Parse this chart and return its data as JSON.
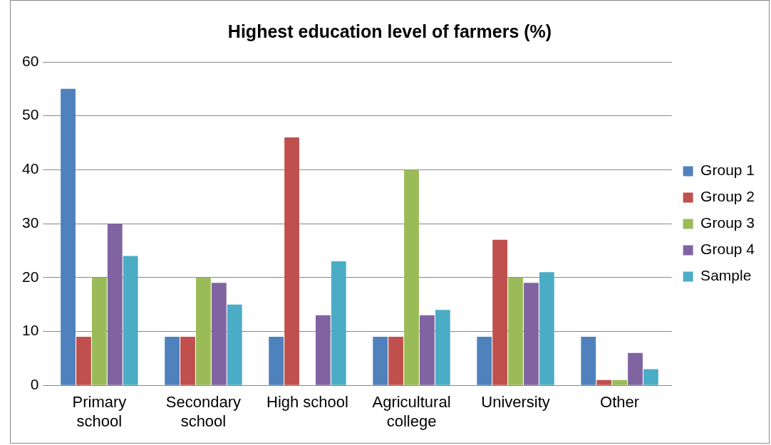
{
  "chart_data": {
    "type": "bar",
    "title": "Highest education level of farmers (%)",
    "categories": [
      "Primary school",
      "Secondary school",
      "High school",
      "Agricultural college",
      "University",
      "Other"
    ],
    "series": [
      {
        "name": "Group 1",
        "color": "#4f81bd",
        "values": [
          55,
          9,
          9,
          9,
          9,
          9
        ]
      },
      {
        "name": "Group 2",
        "color": "#c0504d",
        "values": [
          9,
          9,
          46,
          9,
          27,
          1
        ]
      },
      {
        "name": "Group 3",
        "color": "#9bbb59",
        "values": [
          20,
          20,
          0,
          40,
          20,
          1
        ]
      },
      {
        "name": "Group 4",
        "color": "#8064a2",
        "values": [
          30,
          19,
          13,
          13,
          19,
          6
        ]
      },
      {
        "name": "Sample",
        "color": "#4bacc6",
        "values": [
          24,
          15,
          23,
          14,
          21,
          3
        ]
      }
    ],
    "ylim": [
      0,
      60
    ],
    "yticks": [
      0,
      10,
      20,
      30,
      40,
      50,
      60
    ],
    "grid": "y",
    "legend": "right"
  }
}
